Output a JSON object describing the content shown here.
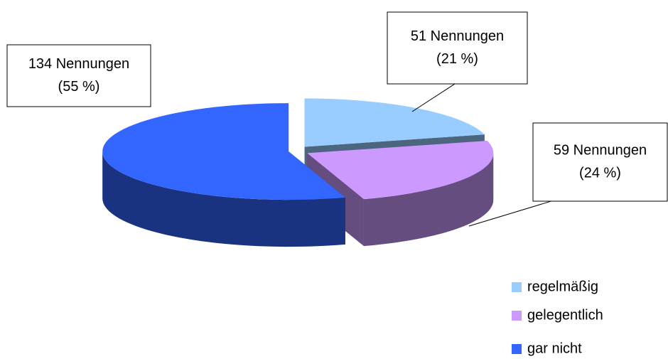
{
  "chart_data": {
    "type": "pie3d",
    "categories": [
      "regelmäßig",
      "gelegentlich",
      "gar nicht"
    ],
    "values": [
      51,
      59,
      134
    ],
    "value_labels": [
      "51 Nennungen",
      "59 Nennungen",
      "134 Nennungen"
    ],
    "percents": [
      21,
      24,
      55
    ],
    "percent_labels": [
      "(21 %)",
      "(24 %)",
      "(55 %)"
    ],
    "colors": [
      "#99ccff",
      "#cc99ff",
      "#3366ff"
    ]
  }
}
